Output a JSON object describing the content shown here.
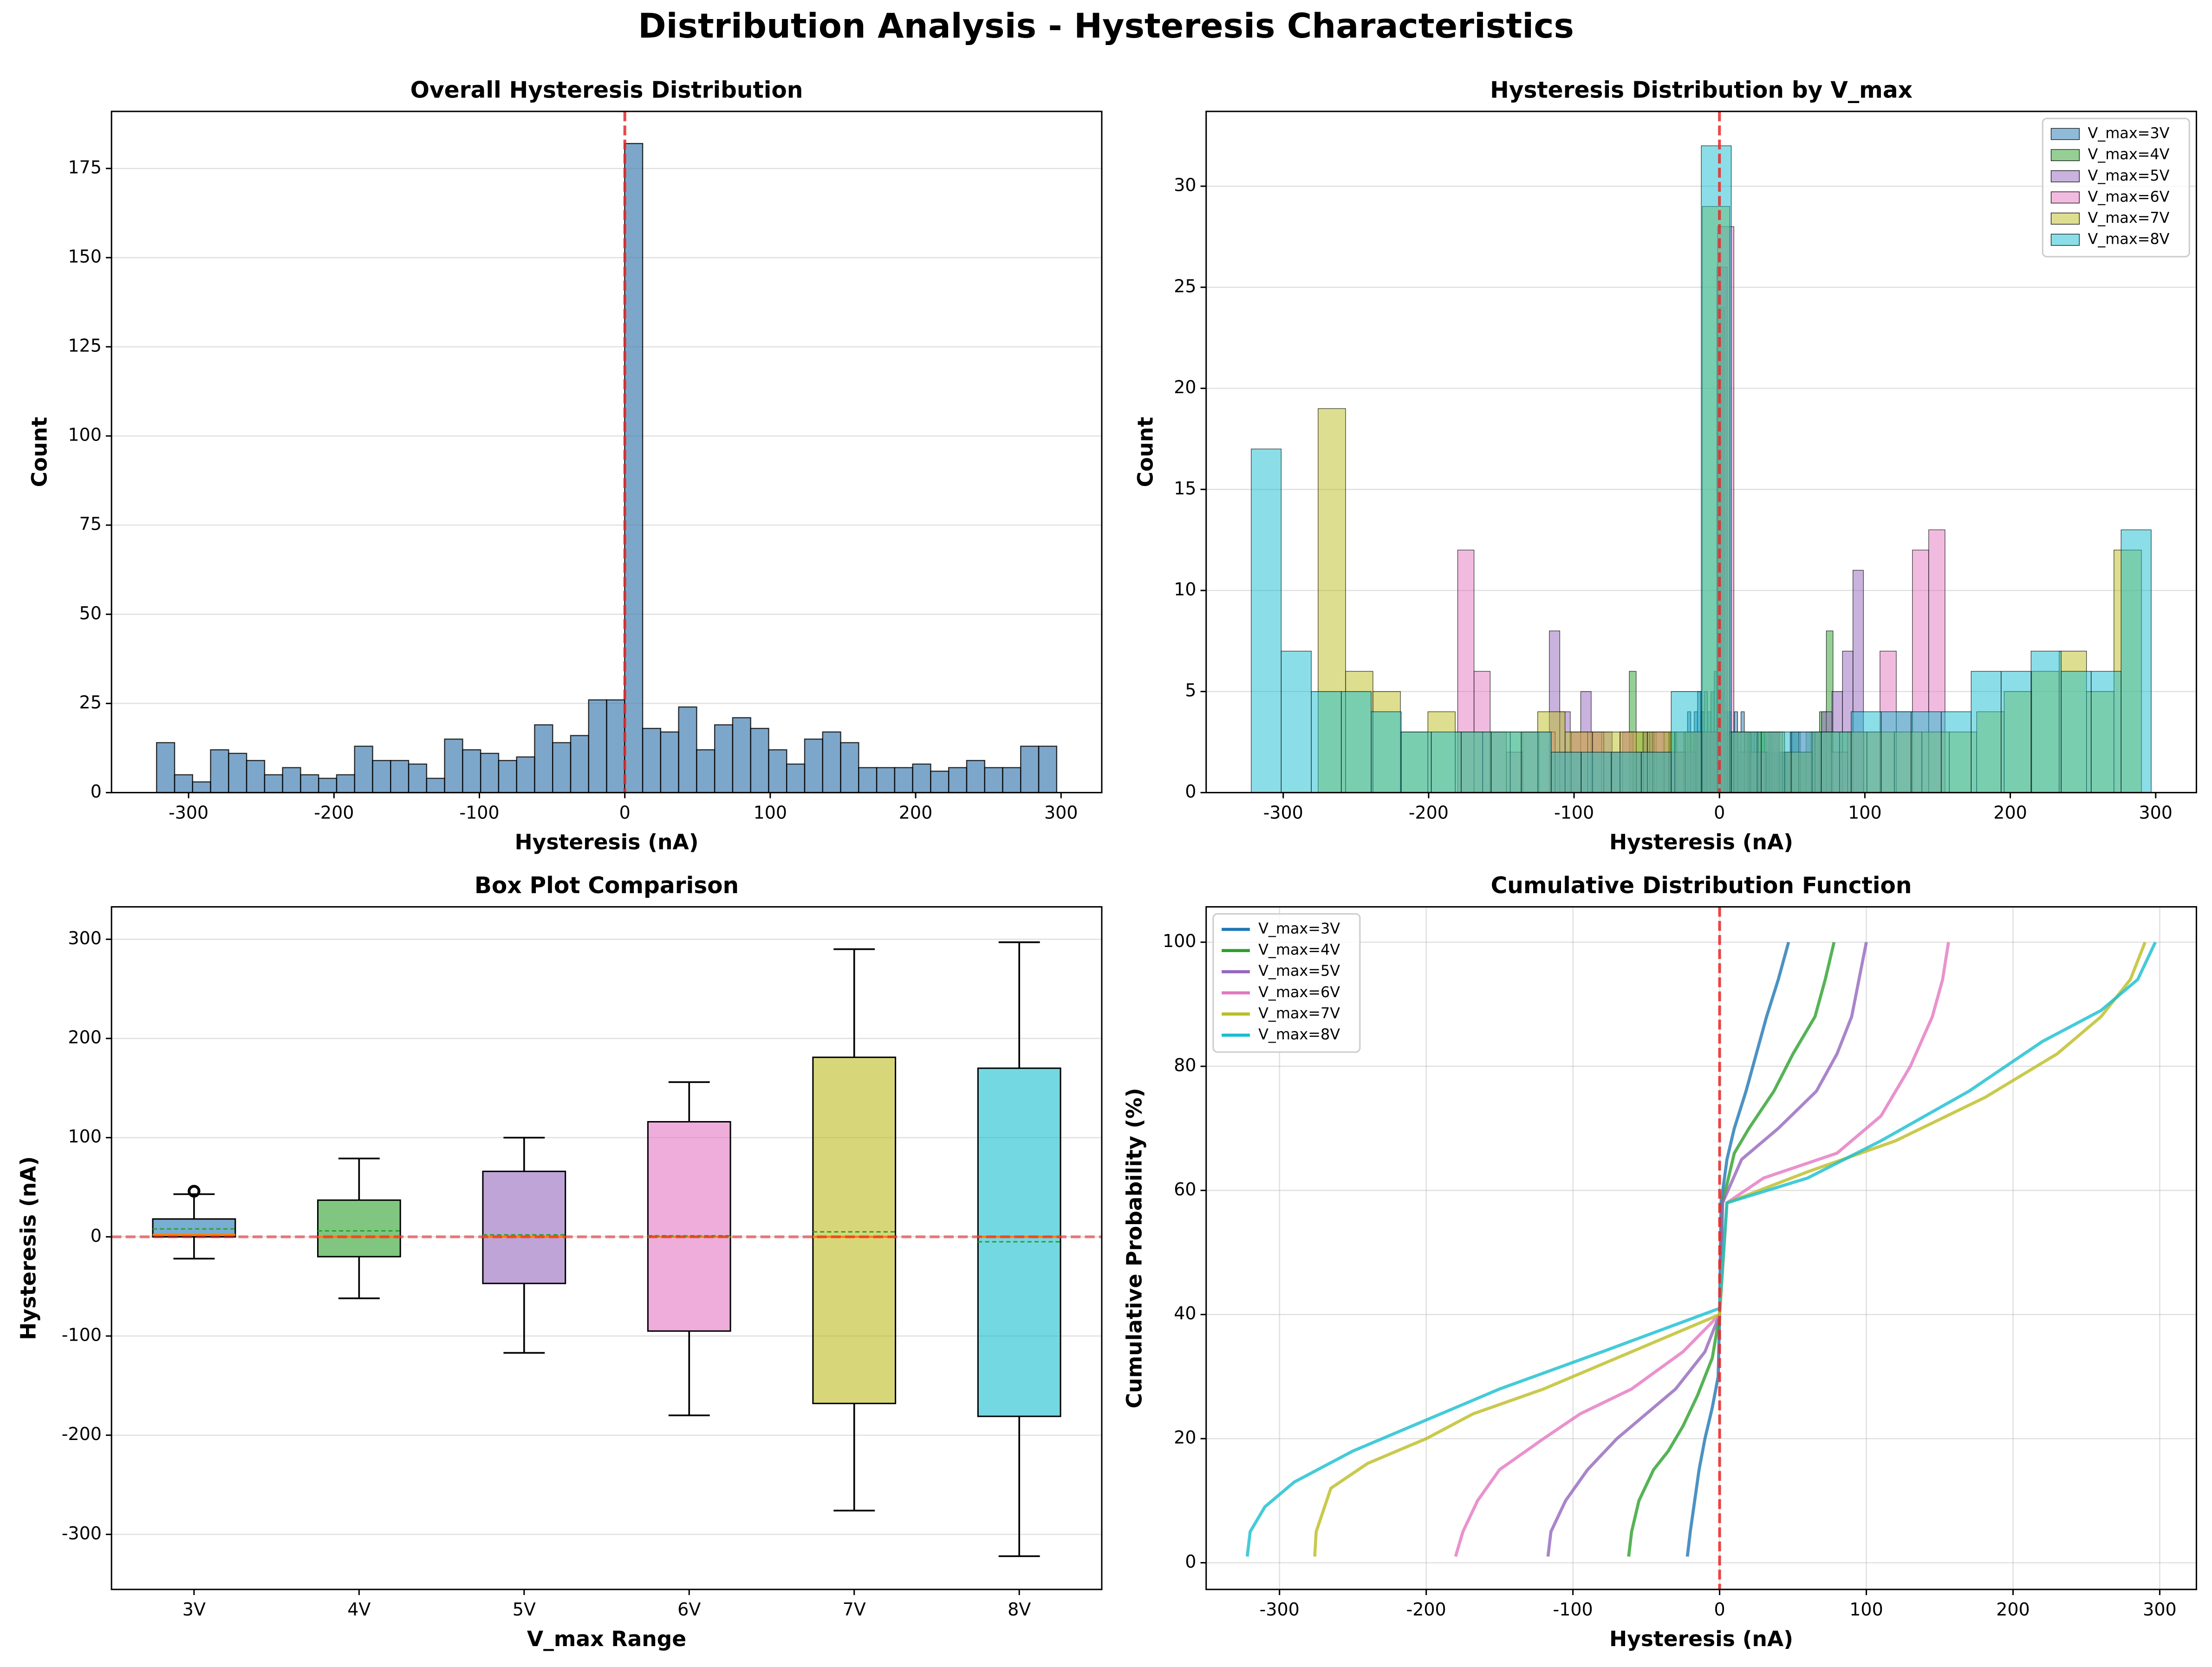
{
  "title": "Distribution Analysis - Hysteresis Characteristics",
  "chart_data": [
    {
      "type": "histogram",
      "title": "Overall Hysteresis Distribution",
      "x_label": "Hysteresis (nA)",
      "y_label": "Count",
      "color": "#4682b4",
      "grid": "y",
      "vline": 0,
      "xlim": [
        -353,
        328
      ],
      "xticks": [
        -300,
        -200,
        -100,
        0,
        100,
        200,
        300
      ],
      "ylim": [
        0,
        191
      ],
      "yticks": [
        0,
        25,
        50,
        75,
        100,
        125,
        150,
        175
      ],
      "bins": [
        -322,
        -309.62,
        -297.24,
        -284.86,
        -272.48,
        -260.1,
        -247.72,
        -235.34,
        -222.96,
        -210.58,
        -198.2,
        -185.82,
        -173.44,
        -161.06,
        -148.68,
        -136.3,
        -123.92,
        -111.54,
        -99.16,
        -86.78,
        -74.4,
        -62.02,
        -49.64,
        -37.26,
        -24.88,
        -12.5,
        -0.12,
        12.26,
        24.64,
        37.02,
        49.4,
        61.78,
        74.16,
        86.54,
        98.92,
        111.3,
        123.68,
        136.06,
        148.44,
        160.82,
        173.2,
        185.58,
        197.96,
        210.34,
        222.72,
        235.1,
        247.48,
        259.86,
        272.24,
        284.62,
        297
      ],
      "values": [
        14,
        5,
        3,
        12,
        11,
        9,
        5,
        7,
        5,
        4,
        5,
        13,
        9,
        9,
        8,
        4,
        15,
        12,
        11,
        9,
        10,
        19,
        14,
        16,
        26,
        26,
        182,
        18,
        17,
        24,
        12,
        19,
        21,
        18,
        12,
        8,
        15,
        17,
        14,
        7,
        7,
        7,
        8,
        6,
        7,
        9,
        7,
        7,
        13,
        13
      ]
    },
    {
      "type": "histogram_multi",
      "title": "Hysteresis Distribution by V_max",
      "x_label": "Hysteresis (nA)",
      "y_label": "Count",
      "grid": "y",
      "vline": 0,
      "legend": "upper right",
      "xlim": [
        -353,
        328
      ],
      "xticks": [
        -300,
        -200,
        -100,
        0,
        100,
        200,
        300
      ],
      "ylim": [
        0,
        33.7
      ],
      "yticks": [
        0,
        5,
        10,
        15,
        20,
        25,
        30
      ],
      "series": [
        {
          "name": "V_max=3V",
          "color": "#1f77b4",
          "bins": [
            -22,
            -19.7,
            -17.4,
            -15.1,
            -12.8,
            -10.5,
            -8.2,
            -5.9,
            -3.6,
            -1.3,
            1,
            3.3,
            5.6,
            7.9,
            10.2,
            12.5,
            14.8,
            17.1,
            19.4,
            21.7,
            24,
            26.3,
            28.6,
            30.9,
            33.2,
            35.5,
            37.8,
            40.1,
            42.4,
            44.7,
            47
          ],
          "values": [
            4,
            3,
            4,
            5,
            4,
            5,
            4,
            5,
            6,
            20,
            5,
            4,
            4,
            3,
            4,
            3,
            4,
            3,
            3,
            3,
            3,
            2,
            3,
            2,
            3,
            2,
            2,
            2,
            2,
            2
          ]
        },
        {
          "name": "V_max=4V",
          "color": "#2ca02c",
          "bins": [
            -62,
            -57.3,
            -52.7,
            -48,
            -43.3,
            -38.7,
            -34,
            -29.3,
            -24.6,
            -20,
            -15.3,
            -10.6,
            -6,
            -1.3,
            3.4,
            8,
            12.7,
            17.4,
            22.1,
            26.7,
            31.4,
            36.1,
            40.8,
            45.4,
            50.1,
            54.8,
            59.5,
            64.1,
            68.8,
            73.5,
            78.1
          ],
          "values": [
            6,
            3,
            3,
            3,
            2,
            3,
            3,
            2,
            3,
            3,
            3,
            3,
            3,
            24,
            3,
            3,
            2,
            3,
            2,
            3,
            2,
            3,
            2,
            2,
            3,
            2,
            3,
            3,
            4,
            8
          ]
        },
        {
          "name": "V_max=5V",
          "color": "#9467bd",
          "bins": [
            -117,
            -109.8,
            -102.6,
            -95.4,
            -88.2,
            -81,
            -73.8,
            -66.6,
            -59.4,
            -52.2,
            -45,
            -37.8,
            -30.6,
            -23.4,
            -16.2,
            -9,
            -1.8,
            5.4,
            12.6,
            19.8,
            27,
            34.2,
            41.4,
            48.6,
            55.8,
            63,
            70.2,
            77.4,
            84.6,
            91.8,
            99
          ],
          "values": [
            8,
            4,
            3,
            5,
            3,
            3,
            2,
            3,
            2,
            3,
            3,
            2,
            3,
            2,
            3,
            3,
            26,
            3,
            2,
            3,
            2,
            3,
            2,
            3,
            2,
            3,
            4,
            5,
            7,
            11
          ]
        },
        {
          "name": "V_max=6V",
          "color": "#e377c2",
          "bins": [
            -180,
            -168.8,
            -157.7,
            -146.5,
            -135.3,
            -124.2,
            -113,
            -101.8,
            -90.6,
            -79.5,
            -68.3,
            -57.1,
            -46,
            -34.8,
            -23.6,
            -12.5,
            -1.3,
            9.9,
            21,
            32.2,
            43.4,
            54.5,
            65.7,
            76.9,
            88.1,
            99.2,
            110.4,
            121.6,
            132.7,
            143.9,
            155.1
          ],
          "values": [
            12,
            6,
            3,
            2,
            3,
            3,
            2,
            3,
            3,
            2,
            3,
            2,
            3,
            2,
            3,
            3,
            28,
            3,
            2,
            3,
            2,
            3,
            3,
            2,
            3,
            3,
            7,
            4,
            12,
            13
          ]
        },
        {
          "name": "V_max=7V",
          "color": "#bcbd22",
          "bins": [
            -276,
            -257.1,
            -238.3,
            -219.4,
            -200.5,
            -181.7,
            -162.8,
            -143.9,
            -125,
            -106.2,
            -87.3,
            -68.4,
            -49.6,
            -30.7,
            -11.8,
            7.1,
            25.9,
            44.8,
            63.7,
            82.6,
            101.4,
            120.3,
            139.2,
            158.1,
            176.9,
            195.8,
            214.7,
            233.6,
            252.4,
            271.3,
            290.2
          ],
          "values": [
            19,
            6,
            5,
            3,
            4,
            3,
            3,
            3,
            4,
            3,
            3,
            3,
            3,
            3,
            29,
            3,
            3,
            2,
            3,
            3,
            3,
            3,
            3,
            3,
            4,
            5,
            6,
            7,
            5,
            12
          ]
        },
        {
          "name": "V_max=8V",
          "color": "#17becf",
          "bins": [
            -322,
            -301.4,
            -280.7,
            -260.1,
            -239.5,
            -218.9,
            -198.2,
            -177.6,
            -157,
            -136.3,
            -115.7,
            -95.1,
            -74.4,
            -53.8,
            -33.2,
            -12.5,
            8.1,
            28.7,
            49.3,
            70,
            90.6,
            111.2,
            131.8,
            152.5,
            173.1,
            193.7,
            214.3,
            235,
            255.6,
            276.2,
            296.9
          ],
          "values": [
            17,
            7,
            5,
            5,
            4,
            3,
            3,
            3,
            3,
            3,
            2,
            2,
            2,
            2,
            5,
            32,
            3,
            3,
            3,
            3,
            4,
            4,
            4,
            4,
            6,
            6,
            7,
            6,
            6,
            13
          ]
        }
      ]
    },
    {
      "type": "box",
      "title": "Box Plot Comparison",
      "x_label": "V_max Range",
      "y_label": "Hysteresis (nA)",
      "grid": "y",
      "hline": 0,
      "ylim": [
        -355.5,
        332.7
      ],
      "yticks": [
        -300,
        -200,
        -100,
        0,
        100,
        200,
        300
      ],
      "categories": [
        "3V",
        "4V",
        "5V",
        "6V",
        "7V",
        "8V"
      ],
      "colors": [
        "#1f77b4",
        "#2ca02c",
        "#9467bd",
        "#e377c2",
        "#bcbd22",
        "#17becf"
      ],
      "whisker_low": [
        -22,
        -62,
        -117,
        -180,
        -276,
        -322
      ],
      "q1": [
        0,
        -20,
        -47,
        -95,
        -168,
        -181
      ],
      "median": [
        2,
        0,
        0,
        0,
        0,
        0
      ],
      "mean": [
        8,
        6,
        2,
        1,
        5,
        -5
      ],
      "q3": [
        18,
        37,
        66,
        116,
        181,
        170
      ],
      "whisker_high": [
        43,
        79,
        100,
        156,
        290,
        297
      ],
      "outliers": [
        [
          46
        ],
        [],
        [],
        [],
        [],
        []
      ]
    },
    {
      "type": "line",
      "title": "Cumulative Distribution Function",
      "x_label": "Hysteresis (nA)",
      "y_label": "Cumulative Probability (%)",
      "grid": "both",
      "vline": 0,
      "legend": "upper left",
      "xlim": [
        -350,
        325
      ],
      "xticks": [
        -300,
        -200,
        -100,
        0,
        100,
        200,
        300
      ],
      "ylim": [
        -4.3,
        105.7
      ],
      "yticks": [
        0,
        20,
        40,
        60,
        80,
        100
      ],
      "series": [
        {
          "name": "V_max=3V",
          "color": "#1f77b4",
          "x": [
            -22,
            -20,
            -17,
            -14,
            -10,
            -5,
            -1,
            0,
            1,
            5,
            10,
            18,
            25,
            32,
            40,
            47
          ],
          "values": [
            1,
            5,
            10,
            15,
            20,
            25,
            30,
            40,
            58,
            65,
            70,
            76,
            82,
            88,
            94,
            100
          ]
        },
        {
          "name": "V_max=4V",
          "color": "#2ca02c",
          "x": [
            -62,
            -60,
            -55,
            -45,
            -35,
            -25,
            -15,
            -5,
            0,
            2,
            10,
            20,
            37,
            50,
            65,
            72,
            78
          ],
          "values": [
            1,
            5,
            10,
            15,
            18,
            22,
            27,
            33,
            40,
            58,
            66,
            70,
            76,
            82,
            88,
            94,
            100
          ]
        },
        {
          "name": "V_max=5V",
          "color": "#9467bd",
          "x": [
            -117,
            -115,
            -105,
            -90,
            -70,
            -50,
            -30,
            -10,
            0,
            2,
            15,
            40,
            66,
            80,
            90,
            95,
            100
          ],
          "values": [
            1,
            5,
            10,
            15,
            20,
            24,
            28,
            34,
            40,
            58,
            65,
            70,
            76,
            82,
            88,
            94,
            100
          ]
        },
        {
          "name": "V_max=6V",
          "color": "#e377c2",
          "x": [
            -180,
            -175,
            -165,
            -150,
            -120,
            -95,
            -60,
            -25,
            0,
            5,
            30,
            80,
            110,
            130,
            145,
            152,
            156
          ],
          "values": [
            1,
            5,
            10,
            15,
            20,
            24,
            28,
            34,
            40,
            58,
            62,
            66,
            72,
            80,
            88,
            94,
            100
          ]
        },
        {
          "name": "V_max=7V",
          "color": "#bcbd22",
          "x": [
            -276,
            -275,
            -265,
            -240,
            -200,
            -168,
            -120,
            -60,
            0,
            5,
            60,
            120,
            181,
            230,
            260,
            280,
            290
          ],
          "values": [
            1,
            5,
            12,
            16,
            20,
            24,
            28,
            34,
            40,
            58,
            63,
            68,
            75,
            82,
            88,
            94,
            100
          ]
        },
        {
          "name": "V_max=8V",
          "color": "#17becf",
          "x": [
            -322,
            -320,
            -310,
            -290,
            -250,
            -200,
            -150,
            -80,
            0,
            5,
            60,
            110,
            170,
            220,
            260,
            285,
            297
          ],
          "values": [
            1,
            5,
            9,
            13,
            18,
            23,
            28,
            34,
            41,
            58,
            62,
            68,
            76,
            84,
            89,
            94,
            100
          ]
        }
      ]
    }
  ]
}
